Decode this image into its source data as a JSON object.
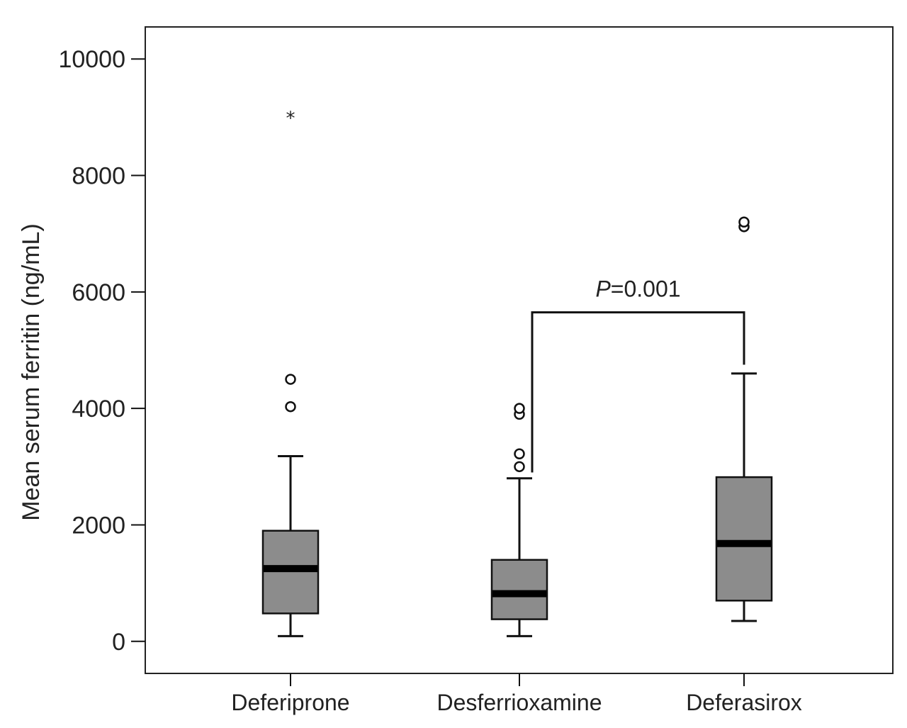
{
  "chart_data": {
    "type": "box",
    "title": "",
    "xlabel": "",
    "ylabel": "Mean serum ferritin (ng/mL)",
    "ylim": [
      -550,
      10550
    ],
    "yticks": [
      0,
      2000,
      4000,
      6000,
      8000,
      10000
    ],
    "ytick_labels": [
      "0",
      "2000",
      "4000",
      "6000",
      "8000",
      "10000"
    ],
    "categories": [
      "Deferiprone",
      "Desferrioxamine",
      "Deferasirox"
    ],
    "boxes": [
      {
        "name": "Deferiprone",
        "whisker_low": 90,
        "q1": 480,
        "median": 1250,
        "q3": 1900,
        "whisker_high": 3180,
        "outliers": [
          4030,
          4500
        ],
        "extremes": [
          9000
        ]
      },
      {
        "name": "Desferrioxamine",
        "whisker_low": 90,
        "q1": 380,
        "median": 820,
        "q3": 1400,
        "whisker_high": 2800,
        "outliers": [
          3000,
          3220,
          3900,
          4000
        ],
        "extremes": []
      },
      {
        "name": "Deferasirox",
        "whisker_low": 350,
        "q1": 700,
        "median": 1680,
        "q3": 2820,
        "whisker_high": 4600,
        "outliers": [
          7120,
          7200
        ],
        "extremes": []
      }
    ],
    "annotation": {
      "from": "Desferrioxamine",
      "to": "Deferasirox",
      "level": 5650,
      "left_drop_to": 2900,
      "right_drop_to": 4750,
      "p_symbol": "P",
      "p_value_text": "=0.001"
    },
    "colors": {
      "box_fill": "#8c8c8c",
      "line": "#111111",
      "median": "#000000"
    }
  }
}
